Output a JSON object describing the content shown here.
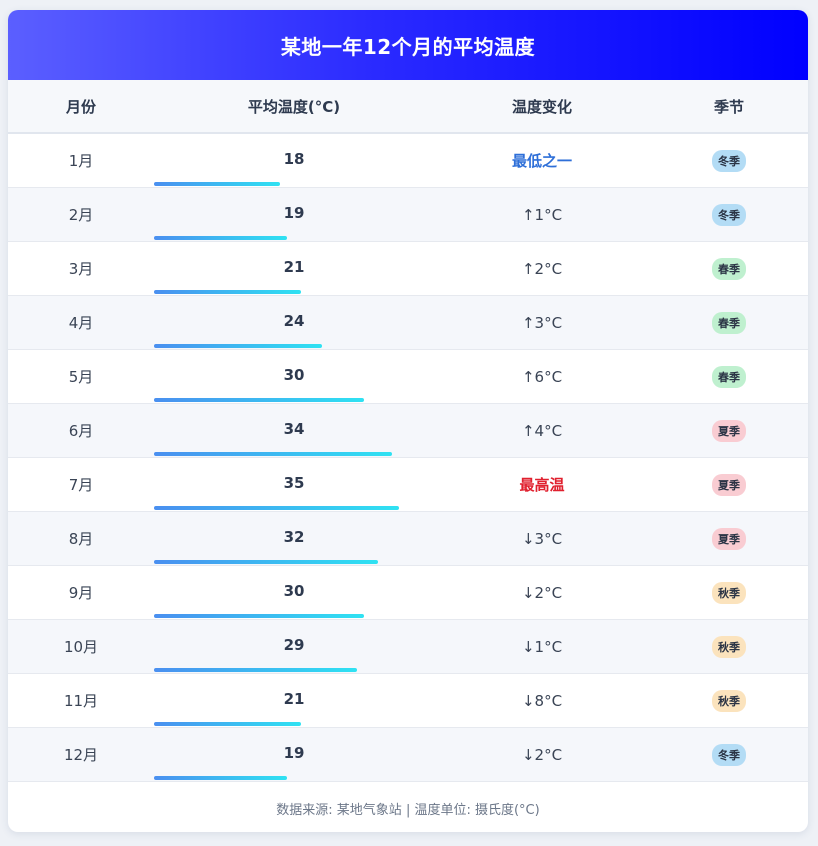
{
  "title": "某地一年12个月的平均温度",
  "header": {
    "month": "月份",
    "temp": "平均温度(°C)",
    "change": "温度变化",
    "season": "季节"
  },
  "season_colors": {
    "冬季": "#b3dcf5",
    "春季": "#bff0cf",
    "夏季": "#f9ccd2",
    "秋季": "#fbe3bd"
  },
  "chart_data": {
    "type": "table",
    "max_temp": 35,
    "rows": [
      {
        "month": "1月",
        "temp": 18,
        "change": "最低之一",
        "change_style": "low",
        "season": "冬季"
      },
      {
        "month": "2月",
        "temp": 19,
        "change": "↑1°C",
        "change_style": "",
        "season": "冬季"
      },
      {
        "month": "3月",
        "temp": 21,
        "change": "↑2°C",
        "change_style": "",
        "season": "春季"
      },
      {
        "month": "4月",
        "temp": 24,
        "change": "↑3°C",
        "change_style": "",
        "season": "春季"
      },
      {
        "month": "5月",
        "temp": 30,
        "change": "↑6°C",
        "change_style": "",
        "season": "春季"
      },
      {
        "month": "6月",
        "temp": 34,
        "change": "↑4°C",
        "change_style": "",
        "season": "夏季"
      },
      {
        "month": "7月",
        "temp": 35,
        "change": "最高温",
        "change_style": "high",
        "season": "夏季"
      },
      {
        "month": "8月",
        "temp": 32,
        "change": "↓3°C",
        "change_style": "",
        "season": "夏季"
      },
      {
        "month": "9月",
        "temp": 30,
        "change": "↓2°C",
        "change_style": "",
        "season": "秋季"
      },
      {
        "month": "10月",
        "temp": 29,
        "change": "↓1°C",
        "change_style": "",
        "season": "秋季"
      },
      {
        "month": "11月",
        "temp": 21,
        "change": "↓8°C",
        "change_style": "",
        "season": "秋季"
      },
      {
        "month": "12月",
        "temp": 19,
        "change": "↓2°C",
        "change_style": "",
        "season": "冬季"
      }
    ]
  },
  "footer": "数据来源: 某地气象站 | 温度单位: 摄氏度(°C)"
}
